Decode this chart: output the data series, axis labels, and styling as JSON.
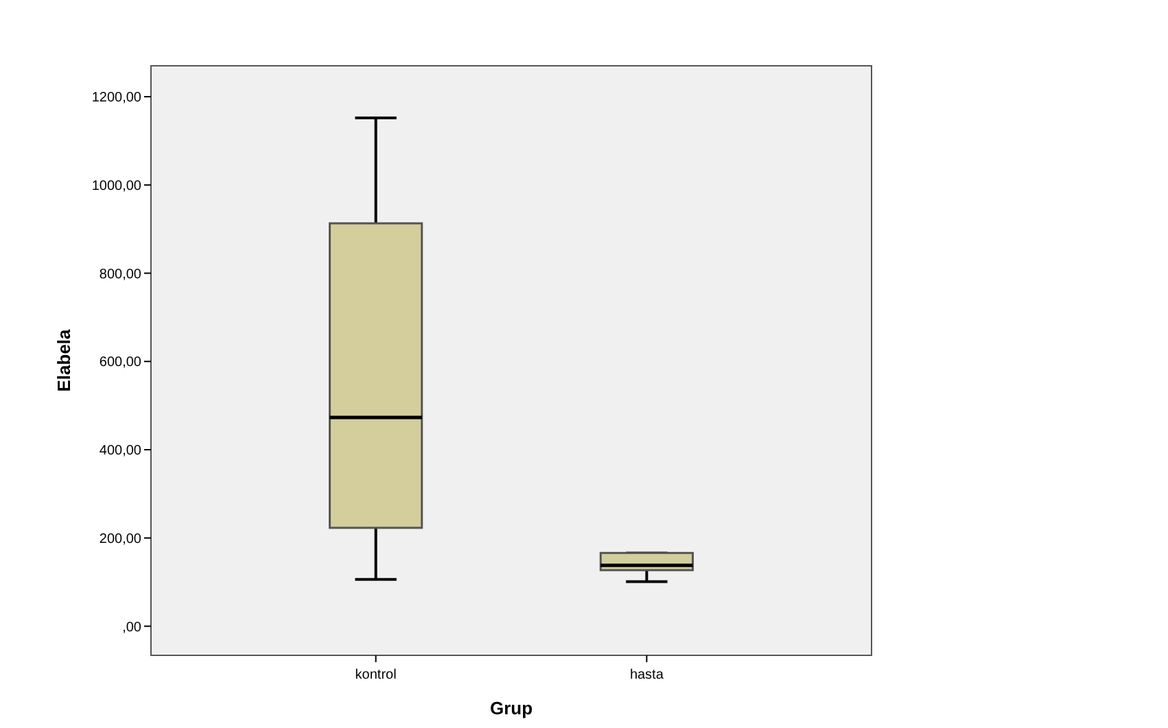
{
  "chart_data": {
    "type": "box",
    "xlabel": "Grup",
    "ylabel": "Elabela",
    "categories": [
      "kontrol",
      "hasta"
    ],
    "boxes": [
      {
        "low": 106,
        "q1": 223,
        "median": 473,
        "q3": 913,
        "high": 1152
      },
      {
        "low": 101,
        "q1": 127,
        "median": 138,
        "q3": 166,
        "high": 166
      }
    ],
    "color": "#d3ce9c",
    "ylim": [
      -66,
      1270
    ],
    "yticks": [
      {
        "value": 0,
        "label": ",00"
      },
      {
        "value": 200,
        "label": "200,00"
      },
      {
        "value": 400,
        "label": "400,00"
      },
      {
        "value": 600,
        "label": "600,00"
      },
      {
        "value": 800,
        "label": "800,00"
      },
      {
        "value": 1000,
        "label": "1000,00"
      },
      {
        "value": 1200,
        "label": "1200,00"
      }
    ],
    "grid": false
  }
}
